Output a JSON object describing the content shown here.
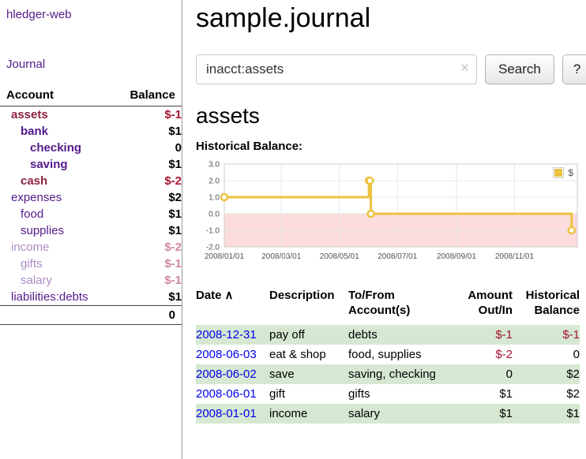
{
  "app": {
    "title": "hledger-web",
    "nav_journal": "Journal"
  },
  "colors": {
    "link_purple": "#551A8B",
    "link_blue": "#0000EE",
    "negative": "#a3142e",
    "negative_account": "#8f2240",
    "row_highlight": "#d6e8d2",
    "chart_line": "#EDC240",
    "chart_negative_bg": "#fcdcdc"
  },
  "icons": {
    "sort_asc": "∧",
    "clear": "×"
  },
  "sidebar": {
    "header": {
      "account": "Account",
      "balance": "Balance"
    },
    "accounts": [
      {
        "name": "assets",
        "indent": 0,
        "bold": true,
        "dimmed": false,
        "negative": true,
        "balance": "$-1"
      },
      {
        "name": "bank",
        "indent": 1,
        "bold": true,
        "dimmed": false,
        "negative": false,
        "balance": "$1"
      },
      {
        "name": "checking",
        "indent": 2,
        "bold": true,
        "dimmed": false,
        "negative": false,
        "balance": "0"
      },
      {
        "name": "saving",
        "indent": 2,
        "bold": true,
        "dimmed": false,
        "negative": false,
        "balance": "$1"
      },
      {
        "name": "cash",
        "indent": 1,
        "bold": true,
        "dimmed": false,
        "negative": true,
        "balance": "$-2"
      },
      {
        "name": "expenses",
        "indent": 0,
        "bold": false,
        "dimmed": false,
        "negative": false,
        "balance": "$2"
      },
      {
        "name": "food",
        "indent": 1,
        "bold": false,
        "dimmed": false,
        "negative": false,
        "balance": "$1"
      },
      {
        "name": "supplies",
        "indent": 1,
        "bold": false,
        "dimmed": false,
        "negative": false,
        "balance": "$1"
      },
      {
        "name": "income",
        "indent": 0,
        "bold": false,
        "dimmed": true,
        "negative": true,
        "balance": "$-2"
      },
      {
        "name": "gifts",
        "indent": 1,
        "bold": false,
        "dimmed": true,
        "negative": true,
        "balance": "$-1"
      },
      {
        "name": "salary",
        "indent": 1,
        "bold": false,
        "dimmed": true,
        "negative": true,
        "balance": "$-1"
      },
      {
        "name": "liabilities:debts",
        "indent": 0,
        "bold": false,
        "dimmed": false,
        "negative": false,
        "balance": "$1"
      }
    ],
    "total": "0"
  },
  "main": {
    "title": "sample.journal",
    "search": {
      "value": "inacct:assets",
      "button_label": "Search",
      "help_label": "?"
    },
    "heading": "assets",
    "chart_label": "Historical Balance:"
  },
  "chart_data": {
    "type": "line",
    "title": "Historical Balance",
    "step": true,
    "series": [
      {
        "name": "$",
        "color": "#EDC240",
        "points": [
          {
            "date": "2008-01-01",
            "value": 1
          },
          {
            "date": "2008-06-01",
            "value": 2
          },
          {
            "date": "2008-06-02",
            "value": 2
          },
          {
            "date": "2008-06-03",
            "value": 0
          },
          {
            "date": "2008-12-31",
            "value": -1
          }
        ]
      }
    ],
    "ylim": [
      -2,
      3
    ],
    "y_ticks": [
      3,
      2,
      1,
      0,
      -1,
      -2
    ],
    "xlim": [
      "2008-01-01",
      "2008-12-31"
    ],
    "x_ticks": [
      {
        "date": "2008-01-01",
        "label": "2008/01/01"
      },
      {
        "date": "2008-03-01",
        "label": "2008/03/01"
      },
      {
        "date": "2008-05-01",
        "label": "2008/05/01"
      },
      {
        "date": "2008-07-01",
        "label": "2008/07/01"
      },
      {
        "date": "2008-09-01",
        "label": "2008/09/01"
      },
      {
        "date": "2008-11-01",
        "label": "2008/11/01"
      }
    ],
    "legend": {
      "label": "$",
      "position": "top-right"
    },
    "negative_region": true,
    "grid": true
  },
  "register": {
    "columns": [
      {
        "label": "Date",
        "align": "left",
        "sorted": "asc"
      },
      {
        "label": "Description",
        "align": "left"
      },
      {
        "label": "To/From Account(s)",
        "align": "left"
      },
      {
        "label": "Amount Out/In",
        "align": "right"
      },
      {
        "label": "Historical Balance",
        "align": "right"
      }
    ],
    "rows": [
      {
        "date": "2008-12-31",
        "description": "pay off",
        "accounts": "debts",
        "amount": "$-1",
        "balance": "$-1"
      },
      {
        "date": "2008-06-03",
        "description": "eat & shop",
        "accounts": "food, supplies",
        "amount": "$-2",
        "balance": "0"
      },
      {
        "date": "2008-06-02",
        "description": "save",
        "accounts": "saving, checking",
        "amount": "0",
        "balance": "$2"
      },
      {
        "date": "2008-06-01",
        "description": "gift",
        "accounts": "gifts",
        "amount": "$1",
        "balance": "$2"
      },
      {
        "date": "2008-01-01",
        "description": "income",
        "accounts": "salary",
        "amount": "$1",
        "balance": "$1"
      }
    ]
  }
}
